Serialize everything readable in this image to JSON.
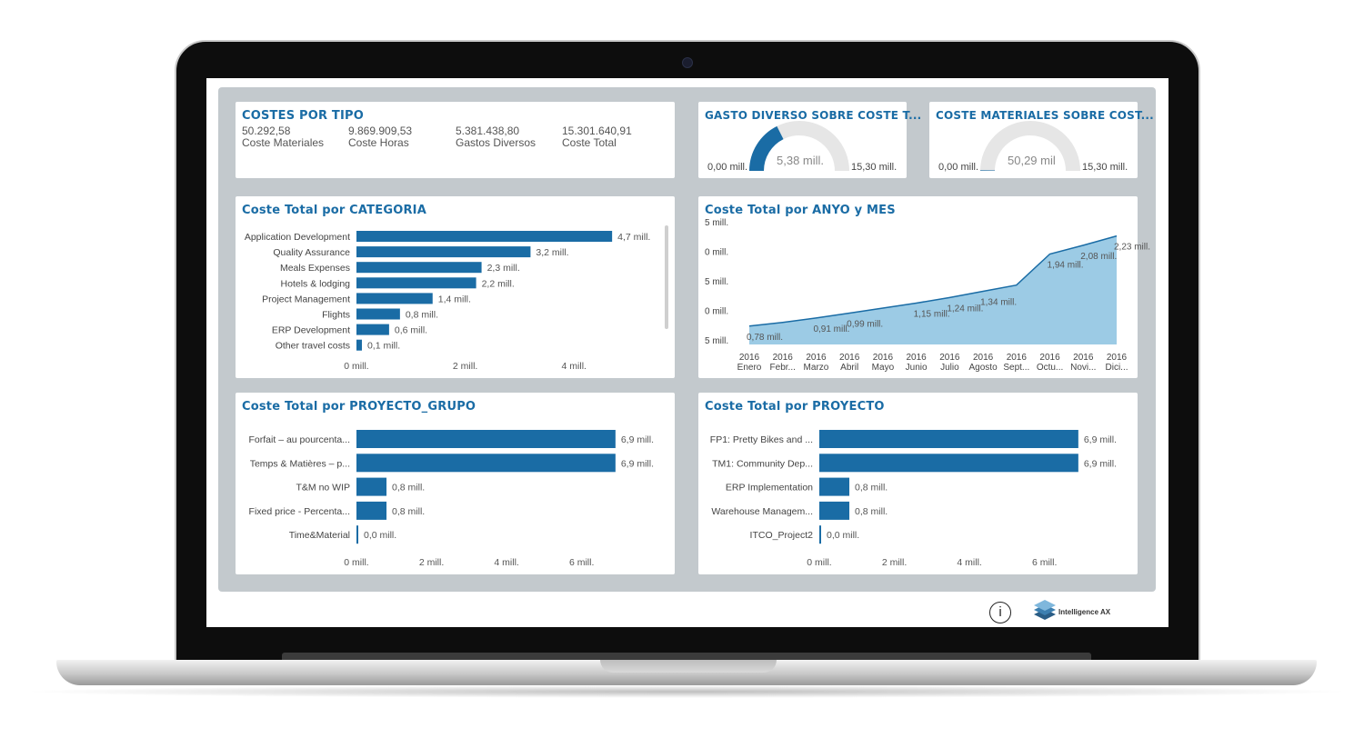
{
  "costes_por_tipo": {
    "title": "COSTES POR TIPO",
    "kpis": [
      {
        "value": "50.292,58",
        "label": "Coste Materiales"
      },
      {
        "value": "9.869.909,53",
        "label": "Coste Horas"
      },
      {
        "value": "5.381.438,80",
        "label": "Gastos Diversos"
      },
      {
        "value": "15.301.640,91",
        "label": "Coste Total"
      }
    ]
  },
  "gauge_gasto": {
    "title": "GASTO DIVERSO SOBRE COSTE T...",
    "min": "0,00 mill.",
    "max": "15,30 mill.",
    "value_label": "5,38 mill.",
    "fraction": 0.352,
    "color": "#1a6ca5"
  },
  "gauge_materiales": {
    "title": "COSTE MATERIALES SOBRE COST...",
    "min": "0,00 mill.",
    "max": "15,30 mill.",
    "value_label": "50,29 mil",
    "fraction": 0.003,
    "color": "#1a6ca5"
  },
  "chart_data": [
    {
      "type": "bar",
      "title": "Coste Total por CATEGORIA",
      "categories": [
        "Application Development",
        "Quality Assurance",
        "Meals Expenses",
        "Hotels & lodging",
        "Project Management",
        "Flights",
        "ERP Development",
        "Other travel costs"
      ],
      "values": [
        4.7,
        3.2,
        2.3,
        2.2,
        1.4,
        0.8,
        0.6,
        0.1
      ],
      "data_labels": [
        "4,7 mill.",
        "3,2 mill.",
        "2,3 mill.",
        "2,2 mill.",
        "1,4 mill.",
        "0,8 mill.",
        "0,6 mill.",
        "0,1 mill."
      ],
      "x_ticks": [
        "0 mill.",
        "2 mill.",
        "4 mill."
      ],
      "x_tick_values": [
        0,
        2,
        4
      ],
      "xlim": [
        0,
        5.5
      ],
      "color": "#1a6ca5"
    },
    {
      "type": "area",
      "title": "Coste Total por ANYO y MES",
      "x_year": [
        "2016",
        "2016",
        "2016",
        "2016",
        "2016",
        "2016",
        "2016",
        "2016",
        "2016",
        "2016",
        "2016",
        "2016"
      ],
      "x_month": [
        "Enero",
        "Febr...",
        "Marzo",
        "Abril",
        "Mayo",
        "Junio",
        "Julio",
        "Agosto",
        "Sept...",
        "Octu...",
        "Novi...",
        "Dici..."
      ],
      "y_tick_labels": [
        "5 mill.",
        "0 mill.",
        "5 mill.",
        "0 mill.",
        "5 mill."
      ],
      "values": [
        0.78,
        0.84,
        0.91,
        0.99,
        1.07,
        1.15,
        1.24,
        1.34,
        1.44,
        1.94,
        2.08,
        2.23
      ],
      "data_labels": [
        "0,78 mill.",
        "",
        "0,91 mill.",
        "0,99 mill.",
        "",
        "1,15 mill.",
        "1,24 mill.",
        "1,34 mill.",
        "",
        "1,94 mill.",
        "2,08 mill.",
        "2,23 mill."
      ],
      "ylim": [
        0.5,
        2.4
      ],
      "fill": "#9ccbe5",
      "stroke": "#1a6ca5"
    },
    {
      "type": "bar",
      "title": "Coste Total por PROYECTO_GRUPO",
      "categories": [
        "Forfait – au pourcenta...",
        "Temps & Matières – p...",
        "T&M no WIP",
        "Fixed price - Percenta...",
        "Time&Material"
      ],
      "values": [
        6.9,
        6.9,
        0.8,
        0.8,
        0.0
      ],
      "data_labels": [
        "6,9 mill.",
        "6,9 mill.",
        "0,8 mill.",
        "0,8 mill.",
        "0,0 mill."
      ],
      "x_ticks": [
        "0 mill.",
        "2 mill.",
        "4 mill.",
        "6 mill."
      ],
      "x_tick_values": [
        0,
        2,
        4,
        6
      ],
      "xlim": [
        0,
        7.8
      ],
      "color": "#1a6ca5"
    },
    {
      "type": "bar",
      "title": "Coste Total por PROYECTO",
      "categories": [
        "FP1: Pretty Bikes and ...",
        "TM1: Community Dep...",
        "ERP Implementation",
        "Warehouse Managem...",
        "ITCO_Project2"
      ],
      "values": [
        6.9,
        6.9,
        0.8,
        0.8,
        0.0
      ],
      "data_labels": [
        "6,9 mill.",
        "6,9 mill.",
        "0,8 mill.",
        "0,8 mill.",
        "0,0 mill."
      ],
      "x_ticks": [
        "0 mill.",
        "2 mill.",
        "4 mill.",
        "6 mill."
      ],
      "x_tick_values": [
        0,
        2,
        4,
        6
      ],
      "xlim": [
        0,
        7.8
      ],
      "color": "#1a6ca5"
    }
  ],
  "footer": {
    "info_icon": "i",
    "logo_text": "Intelligence AX"
  }
}
